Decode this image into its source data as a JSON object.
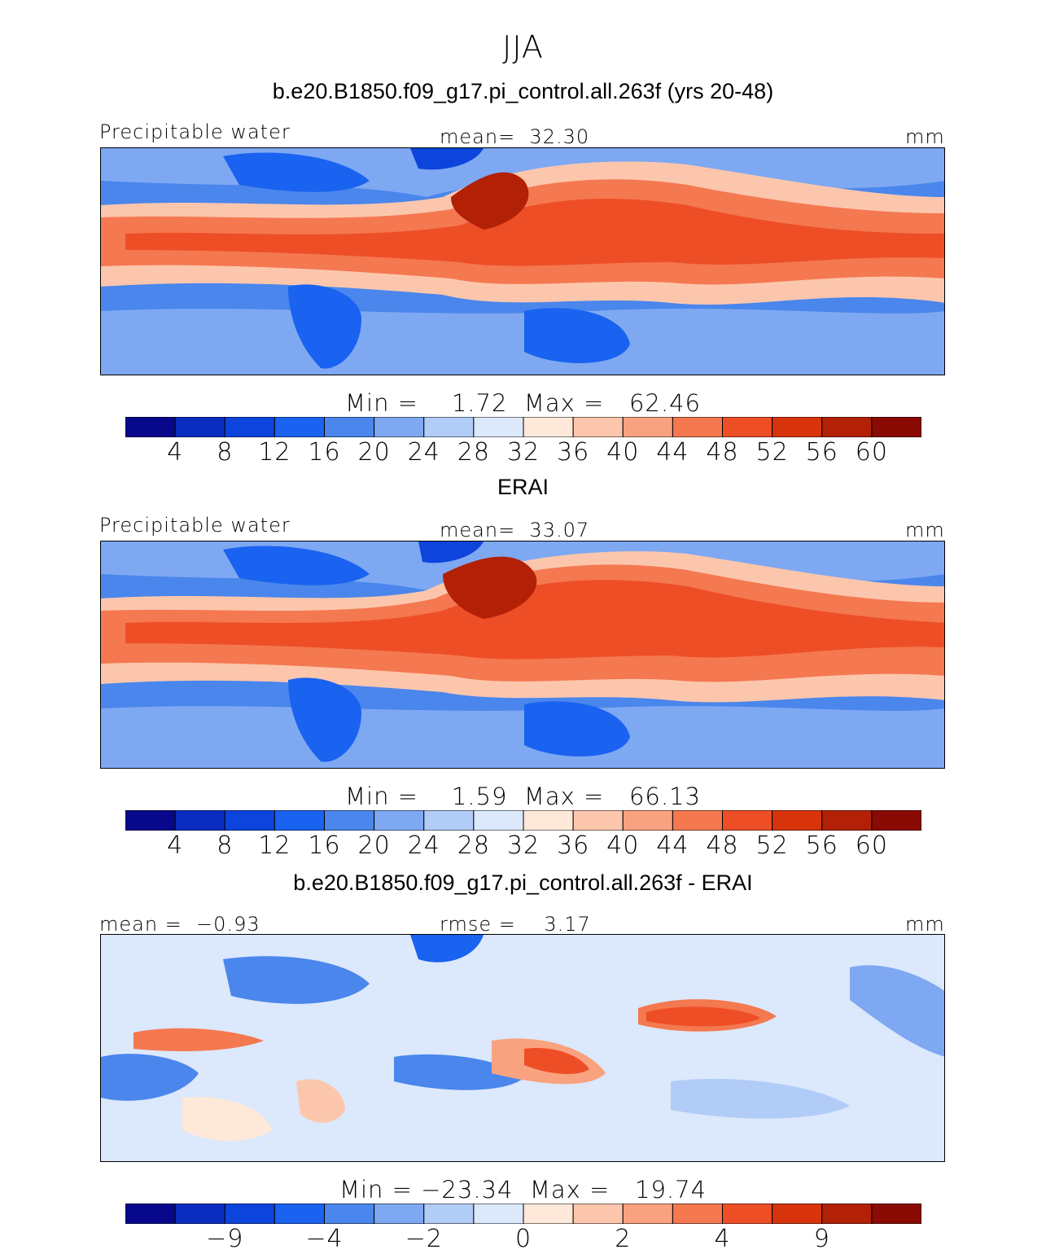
{
  "title": "JJA",
  "palette": [
    "#08088c",
    "#0a2cc0",
    "#0c44dc",
    "#1a62f0",
    "#4a86ec",
    "#7ea8f2",
    "#b2ccf8",
    "#dce8fb",
    "#fde8da",
    "#fcc6ad",
    "#f9a280",
    "#f47850",
    "#ee4e26",
    "#d8340c",
    "#b22006",
    "#8a0a04"
  ],
  "panels": [
    {
      "title": "b.e20.B1850.f09_g17.pi_control.all.263f (yrs 20-48)",
      "left_label": "Precipitable water",
      "center_label": "mean=  32.30",
      "right_label": "mm",
      "minmax": "Min =    1.72  Max =   62.46",
      "cbar_labels": [
        "4",
        "8",
        "12",
        "16",
        "20",
        "24",
        "28",
        "32",
        "36",
        "40",
        "44",
        "48",
        "52",
        "56",
        "60"
      ]
    },
    {
      "title": "ERAI",
      "left_label": "Precipitable water",
      "center_label": "mean=  33.07",
      "right_label": "mm",
      "minmax": "Min =    1.59  Max =   66.13",
      "cbar_labels": [
        "4",
        "8",
        "12",
        "16",
        "20",
        "24",
        "28",
        "32",
        "36",
        "40",
        "44",
        "48",
        "52",
        "56",
        "60"
      ]
    },
    {
      "title": "b.e20.B1850.f09_g17.pi_control.all.263f - ERAI",
      "left_label": "mean =  −0.93",
      "center_label": "rmse =    3.17",
      "right_label": "mm",
      "minmax": "Min = −23.34  Max =   19.74",
      "cbar_labels": [
        "",
        "−9",
        "",
        "−4",
        "",
        "−2",
        "",
        "0",
        "",
        "2",
        "",
        "4",
        "",
        "9",
        ""
      ]
    }
  ],
  "chart_data": [
    {
      "type": "heatmap",
      "title": "b.e20.B1850.f09_g17.pi_control.all.263f (yrs 20-48)",
      "variable": "Precipitable water",
      "units": "mm",
      "mean": 32.3,
      "min": 1.72,
      "max": 62.46,
      "contour_levels": [
        4,
        8,
        12,
        16,
        20,
        24,
        28,
        32,
        36,
        40,
        44,
        48,
        52,
        56,
        60
      ]
    },
    {
      "type": "heatmap",
      "title": "ERAI",
      "variable": "Precipitable water",
      "units": "mm",
      "mean": 33.07,
      "min": 1.59,
      "max": 66.13,
      "contour_levels": [
        4,
        8,
        12,
        16,
        20,
        24,
        28,
        32,
        36,
        40,
        44,
        48,
        52,
        56,
        60
      ]
    },
    {
      "type": "heatmap",
      "title": "b.e20.B1850.f09_g17.pi_control.all.263f - ERAI",
      "units": "mm",
      "mean": -0.93,
      "rmse": 3.17,
      "min": -23.34,
      "max": 19.74,
      "contour_levels_labeled": [
        -9,
        -4,
        -2,
        0,
        2,
        4,
        9
      ]
    }
  ]
}
